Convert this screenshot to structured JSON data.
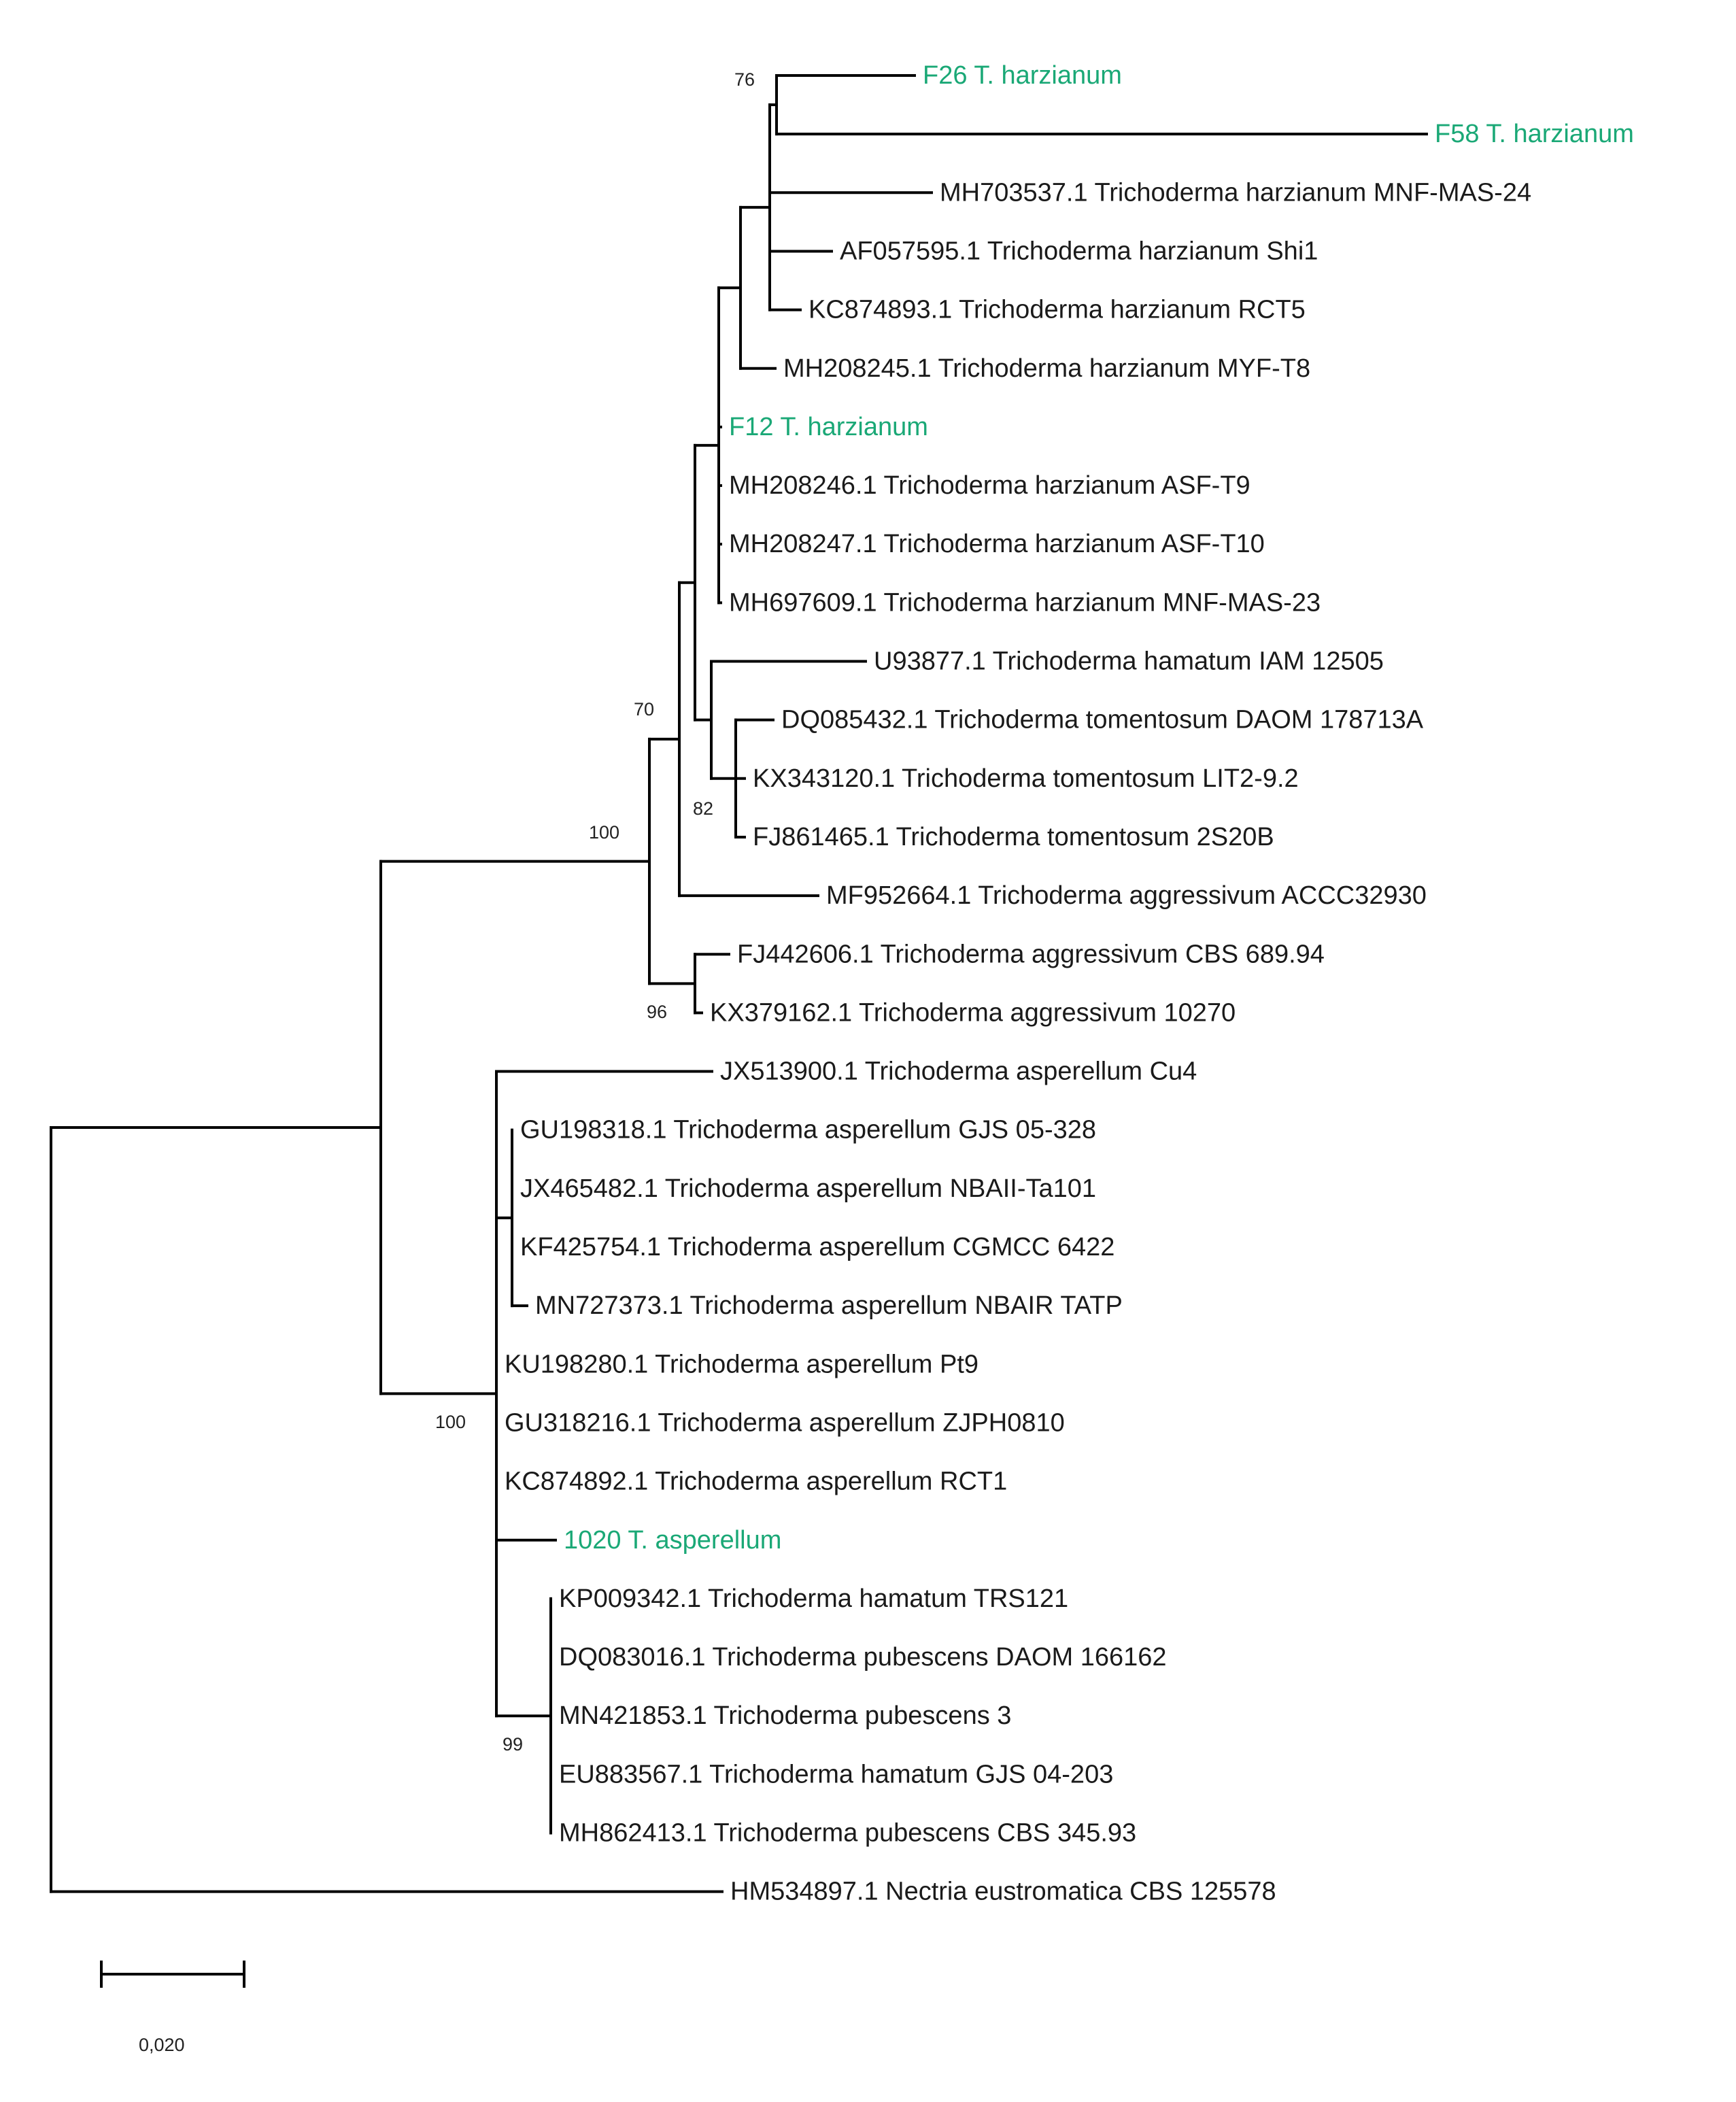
{
  "colors": {
    "branch": "#000000",
    "label": "#1a1a1a",
    "highlight": "#1aa876"
  },
  "tree": {
    "leaves": [
      {
        "id": "F26",
        "label": "F26 T. harzianum",
        "highlight": true
      },
      {
        "id": "F58",
        "label": "F58 T. harzianum",
        "highlight": true
      },
      {
        "id": "MH703537",
        "label": "MH703537.1 Trichoderma harzianum MNF-MAS-24",
        "highlight": false
      },
      {
        "id": "AF057595",
        "label": "AF057595.1 Trichoderma harzianum Shi1",
        "highlight": false
      },
      {
        "id": "KC874893",
        "label": "KC874893.1 Trichoderma harzianum RCT5",
        "highlight": false
      },
      {
        "id": "MH208245",
        "label": "MH208245.1 Trichoderma harzianum MYF-T8",
        "highlight": false
      },
      {
        "id": "F12",
        "label": "F12 T. harzianum",
        "highlight": true
      },
      {
        "id": "MH208246",
        "label": "MH208246.1 Trichoderma harzianum ASF-T9",
        "highlight": false
      },
      {
        "id": "MH208247",
        "label": "MH208247.1 Trichoderma harzianum ASF-T10",
        "highlight": false
      },
      {
        "id": "MH697609",
        "label": "MH697609.1 Trichoderma harzianum MNF-MAS-23",
        "highlight": false
      },
      {
        "id": "U93877",
        "label": "U93877.1 Trichoderma hamatum IAM 12505",
        "highlight": false
      },
      {
        "id": "DQ085432",
        "label": "DQ085432.1 Trichoderma tomentosum DAOM 178713A",
        "highlight": false
      },
      {
        "id": "KX343120",
        "label": "KX343120.1 Trichoderma tomentosum LIT2-9.2",
        "highlight": false
      },
      {
        "id": "FJ861465",
        "label": "FJ861465.1 Trichoderma tomentosum 2S20B",
        "highlight": false
      },
      {
        "id": "MF952664",
        "label": "MF952664.1 Trichoderma aggressivum ACCC32930",
        "highlight": false
      },
      {
        "id": "FJ442606",
        "label": "FJ442606.1 Trichoderma aggressivum CBS 689.94",
        "highlight": false
      },
      {
        "id": "KX379162",
        "label": "KX379162.1 Trichoderma aggressivum 10270",
        "highlight": false
      },
      {
        "id": "JX513900",
        "label": "JX513900.1 Trichoderma asperellum Cu4",
        "highlight": false
      },
      {
        "id": "GU198318",
        "label": "GU198318.1 Trichoderma asperellum GJS 05-328",
        "highlight": false
      },
      {
        "id": "JX465482",
        "label": "JX465482.1 Trichoderma asperellum NBAII-Ta101",
        "highlight": false
      },
      {
        "id": "KF425754",
        "label": "KF425754.1 Trichoderma asperellum CGMCC 6422",
        "highlight": false
      },
      {
        "id": "MN727373",
        "label": "MN727373.1 Trichoderma asperellum NBAIR TATP",
        "highlight": false
      },
      {
        "id": "KU198280",
        "label": "KU198280.1 Trichoderma asperellum Pt9",
        "highlight": false
      },
      {
        "id": "GU318216",
        "label": "GU318216.1 Trichoderma asperellum ZJPH0810",
        "highlight": false
      },
      {
        "id": "KC874892",
        "label": "KC874892.1 Trichoderma asperellum RCT1",
        "highlight": false
      },
      {
        "id": "1020",
        "label": "1020 T. asperellum",
        "highlight": true
      },
      {
        "id": "KP009342",
        "label": "KP009342.1 Trichoderma hamatum TRS121",
        "highlight": false
      },
      {
        "id": "DQ083016",
        "label": "DQ083016.1 Trichoderma pubescens DAOM 166162",
        "highlight": false
      },
      {
        "id": "MN421853",
        "label": "MN421853.1 Trichoderma pubescens 3",
        "highlight": false
      },
      {
        "id": "EU883567",
        "label": "EU883567.1 Trichoderma hamatum GJS 04-203",
        "highlight": false
      },
      {
        "id": "MH862413",
        "label": "MH862413.1 Trichoderma pubescens CBS 345.93",
        "highlight": false
      },
      {
        "id": "HM534897",
        "label": "HM534897.1 Nectria eustromatica CBS 125578",
        "highlight": false
      }
    ],
    "bootstrap": [
      {
        "node": "harzianum-subclade",
        "value": "76"
      },
      {
        "node": "harzianum-tomentosum-clade",
        "value": "70"
      },
      {
        "node": "tomentosum-clade",
        "value": "82"
      },
      {
        "node": "harzianum-group",
        "value": "100"
      },
      {
        "node": "aggressivum-clade",
        "value": "96"
      },
      {
        "node": "asperellum-group",
        "value": "100"
      },
      {
        "node": "pubescens-hamatum-clade",
        "value": "99"
      }
    ],
    "scale_bar": {
      "value": 0.02,
      "label": "0,020"
    }
  }
}
